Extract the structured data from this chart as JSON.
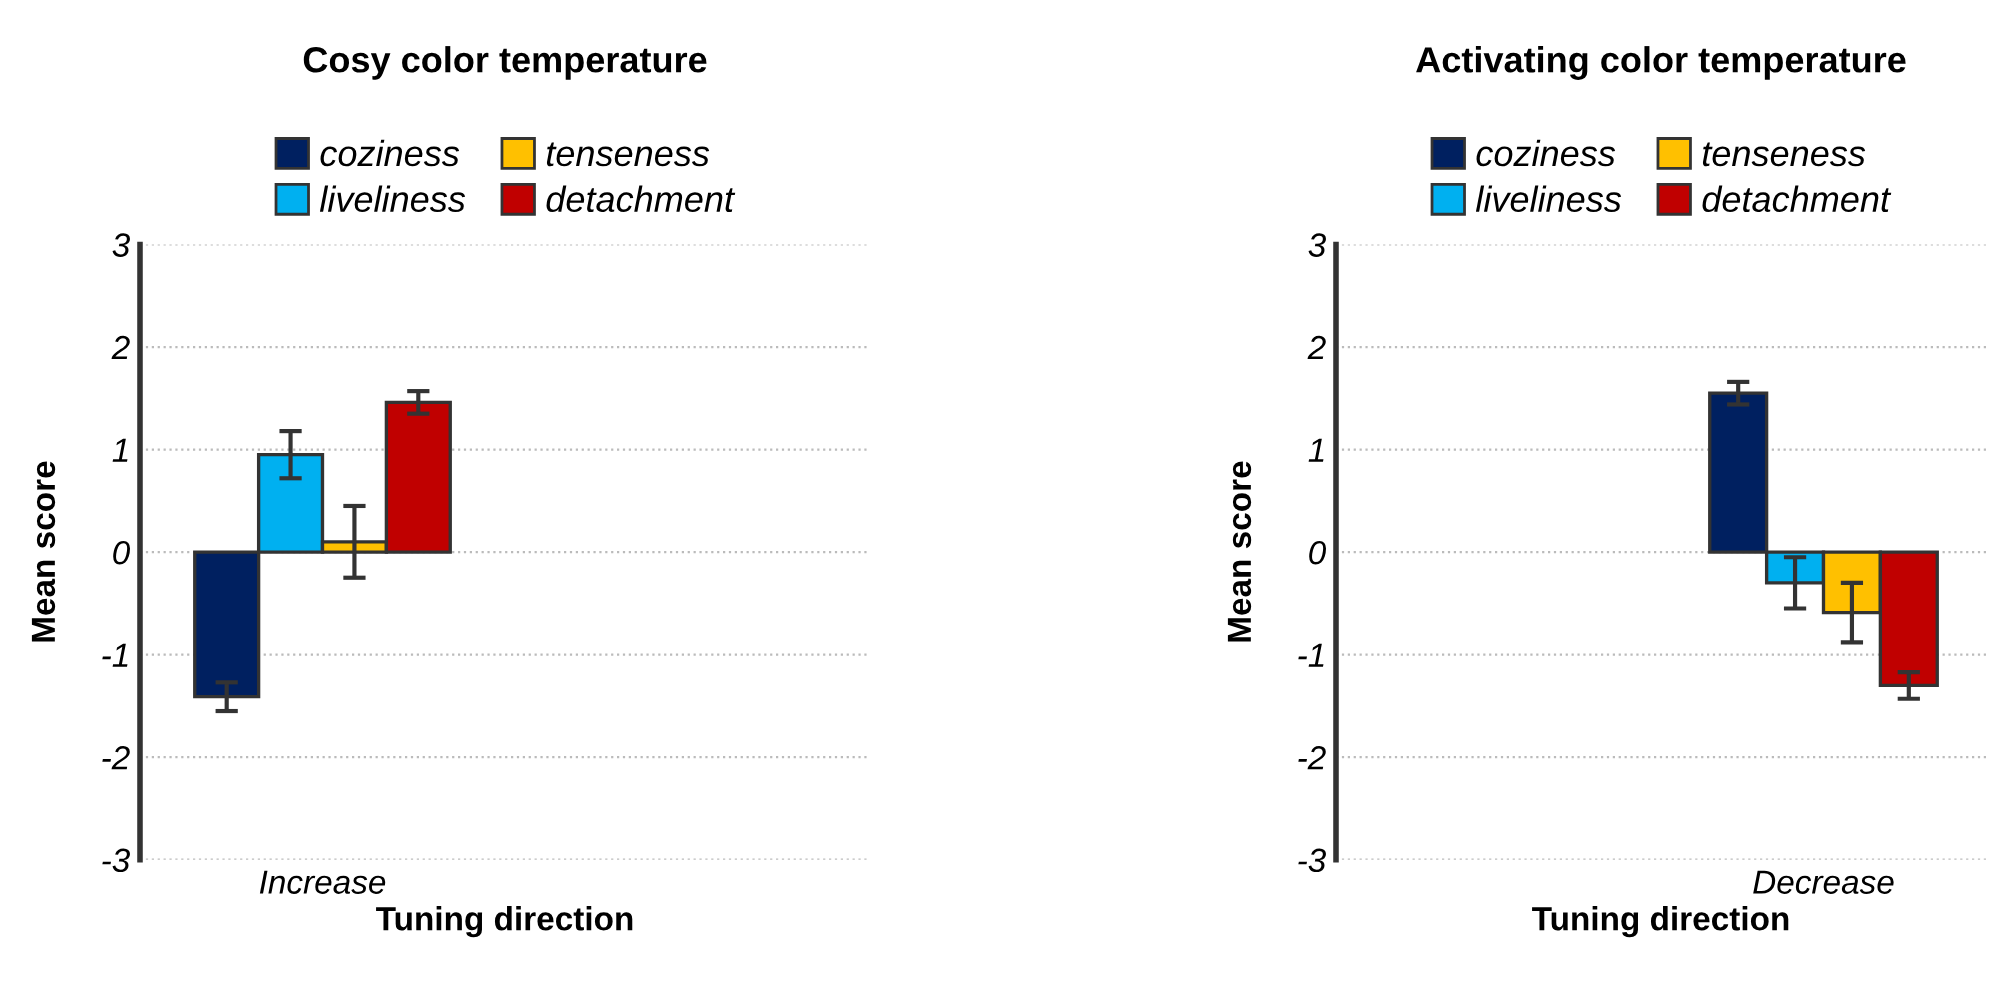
{
  "chart_data": [
    {
      "type": "bar",
      "title": "Cosy color temperature",
      "xlabel": "Tuning direction",
      "ylabel": "Mean score",
      "categories": [
        "Increase",
        null
      ],
      "ylim": [
        -3,
        3
      ],
      "yticks": [
        -3,
        -2,
        -1,
        0,
        1,
        2,
        3
      ],
      "grid": "y",
      "legend": "top",
      "series": [
        {
          "name": "coziness",
          "color": "#002060",
          "values": [
            -1.41,
            null
          ],
          "errors": [
            0.14,
            null
          ]
        },
        {
          "name": "liveliness",
          "color": "#00b0f0",
          "values": [
            0.95,
            null
          ],
          "errors": [
            0.23,
            null
          ]
        },
        {
          "name": "tenseness",
          "color": "#ffc000",
          "values": [
            0.1,
            null
          ],
          "errors": [
            0.35,
            null
          ]
        },
        {
          "name": "detachment",
          "color": "#c00000",
          "values": [
            1.46,
            null
          ],
          "errors": [
            0.11,
            null
          ]
        }
      ]
    },
    {
      "type": "bar",
      "title": "Activating color temperature",
      "xlabel": "Tuning direction",
      "ylabel": "Mean score",
      "categories": [
        null,
        "Decrease"
      ],
      "ylim": [
        -3,
        3
      ],
      "yticks": [
        -3,
        -2,
        -1,
        0,
        1,
        2,
        3
      ],
      "grid": "y",
      "legend": "top",
      "series": [
        {
          "name": "coziness",
          "color": "#002060",
          "values": [
            null,
            1.55
          ],
          "errors": [
            null,
            0.11
          ]
        },
        {
          "name": "liveliness",
          "color": "#00b0f0",
          "values": [
            null,
            -0.3
          ],
          "errors": [
            null,
            0.25
          ]
        },
        {
          "name": "tenseness",
          "color": "#ffc000",
          "values": [
            null,
            -0.59
          ],
          "errors": [
            null,
            0.29
          ]
        },
        {
          "name": "detachment",
          "color": "#c00000",
          "values": [
            null,
            -1.3
          ],
          "errors": [
            null,
            0.13
          ]
        }
      ]
    }
  ]
}
